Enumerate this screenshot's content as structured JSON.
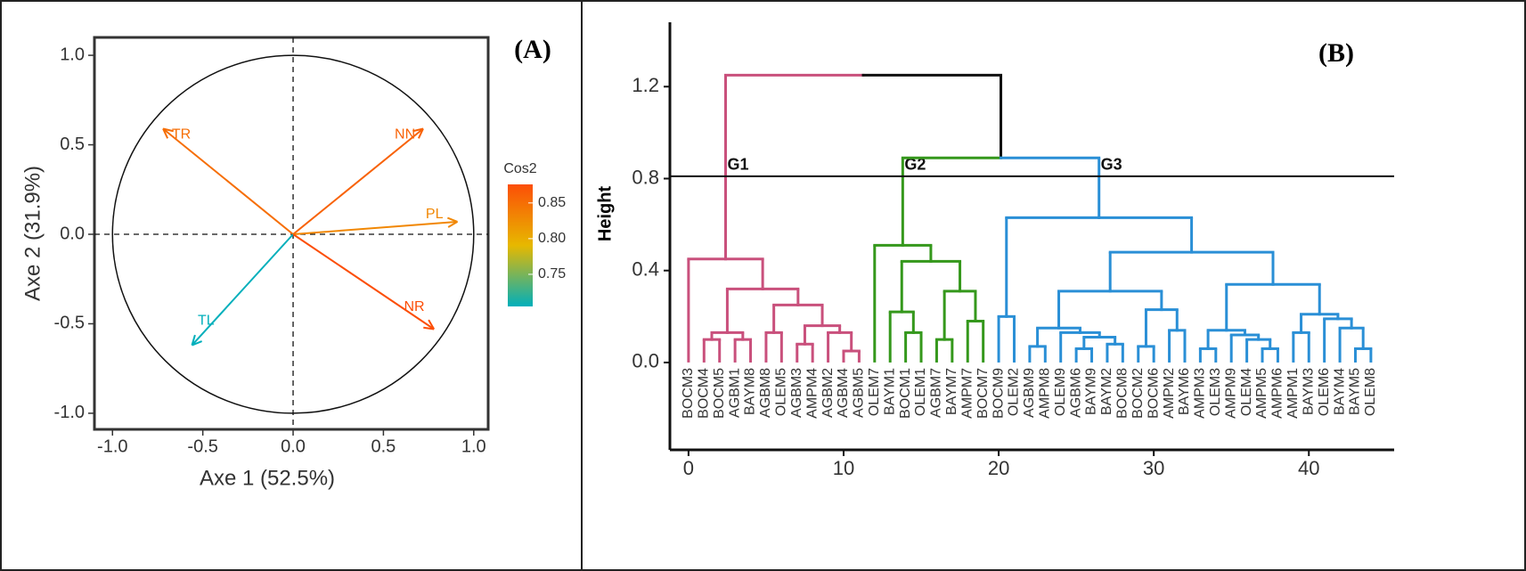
{
  "chart_data": [
    {
      "type": "vector",
      "panel_label": "(A)",
      "x_label": "Axe 1 (52.5%)",
      "y_label": "Axe 2 (31.9%)",
      "xlim": [
        -1.1,
        1.08
      ],
      "ylim": [
        -1.09,
        1.1
      ],
      "xticks": [
        {
          "value": -1,
          "label": "-1.0"
        },
        {
          "value": -0.5,
          "label": "-0.5"
        },
        {
          "value": 0,
          "label": "0.0"
        },
        0.5,
        {
          "value": 1,
          "label": "1.0"
        }
      ],
      "yticks": [
        {
          "value": -1,
          "label": "-1.0"
        },
        {
          "value": -0.5,
          "label": "-0.5"
        },
        {
          "value": 0,
          "label": "0.0"
        },
        0.5,
        {
          "value": 1,
          "label": "1.0"
        }
      ],
      "vectors": [
        {
          "name": "TR",
          "x": -0.72,
          "y": 0.59,
          "cos2": 0.85
        },
        {
          "name": "NN",
          "x": 0.72,
          "y": 0.59,
          "cos2": 0.86
        },
        {
          "name": "PL",
          "x": 0.91,
          "y": 0.07,
          "cos2": 0.83
        },
        {
          "name": "TL",
          "x": -0.56,
          "y": -0.62,
          "cos2": 0.705
        },
        {
          "name": "NR",
          "x": 0.78,
          "y": -0.53,
          "cos2": 0.876
        }
      ],
      "colorbar": {
        "title": "Cos2",
        "colors": [
          "#00AFBB",
          "#E7B800",
          "#FC4E07"
        ],
        "lim": [
          0.705,
          0.876
        ],
        "ticks": [
          0.75,
          {
            "value": 0.8,
            "label": "0.80"
          },
          0.85
        ]
      }
    },
    {
      "type": "dendrogram",
      "panel_label": "(B)",
      "y_label": "Height",
      "xlim": [
        -1.2,
        45.5
      ],
      "ylim": [
        -0.38,
        1.48
      ],
      "xticks": [
        0,
        10,
        20,
        30,
        40
      ],
      "yticks": [
        {
          "value": 0,
          "label": "0.0"
        },
        0.4,
        0.8,
        1.2
      ],
      "cut_height": 0.81,
      "groups": [
        {
          "name": "G1",
          "color": "#c9507c"
        },
        {
          "name": "G2",
          "color": "#35981c"
        },
        {
          "name": "G3",
          "color": "#2a8fd6"
        }
      ],
      "labels": [
        "BOCM3",
        "BOCM4",
        "BOCM5",
        "AGBM1",
        "BAYM8",
        "AGBM8",
        "OLEM5",
        "AGBM3",
        "AMPM4",
        "AGBM2",
        "AGBM4",
        "AGBM5",
        "OLEM7",
        "BAYM1",
        "BOCM1",
        "OLEM1",
        "AGBM7",
        "BAYM7",
        "AMPM7",
        "BOCM7",
        "BOCM9",
        "OLEM2",
        "AGBM9",
        "AMPM8",
        "OLEM9",
        "AGBM6",
        "BAYM9",
        "BAYM2",
        "BOCM8",
        "BOCM2",
        "BOCM6",
        "AMPM2",
        "BAYM6",
        "AMPM3",
        "OLEM3",
        "AMPM9",
        "OLEM4",
        "AMPM5",
        "AMPM6",
        "AMPM1",
        "BAYM3",
        "OLEM6",
        "BAYM4",
        "BAYM5",
        "OLEM8"
      ],
      "tree": {
        "height": 1.25,
        "children": [
          {
            "height": 0.45,
            "children": [
              0,
              {
                "height": 0.32,
                "children": [
                  {
                    "height": 0.13,
                    "children": [
                      {
                        "height": 0.1,
                        "children": [
                          1,
                          2
                        ]
                      },
                      {
                        "height": 0.1,
                        "children": [
                          3,
                          4
                        ]
                      }
                    ]
                  },
                  {
                    "height": 0.25,
                    "children": [
                      {
                        "height": 0.13,
                        "children": [
                          5,
                          6
                        ]
                      },
                      {
                        "height": 0.16,
                        "children": [
                          {
                            "height": 0.08,
                            "children": [
                              7,
                              8
                            ]
                          },
                          {
                            "height": 0.13,
                            "children": [
                              9,
                              {
                                "height": 0.05,
                                "children": [
                                  10,
                                  11
                                ]
                              }
                            ]
                          }
                        ]
                      }
                    ]
                  }
                ]
              }
            ]
          },
          {
            "height": 0.89,
            "children": [
              {
                "height": 0.51,
                "children": [
                  12,
                  {
                    "height": 0.44,
                    "children": [
                      {
                        "height": 0.22,
                        "children": [
                          13,
                          {
                            "height": 0.13,
                            "children": [
                              14,
                              15
                            ]
                          }
                        ]
                      },
                      {
                        "height": 0.31,
                        "children": [
                          {
                            "height": 0.1,
                            "children": [
                              16,
                              17
                            ]
                          },
                          {
                            "height": 0.18,
                            "children": [
                              18,
                              19
                            ]
                          }
                        ]
                      }
                    ]
                  }
                ]
              },
              {
                "height": 0.63,
                "children": [
                  {
                    "height": 0.2,
                    "children": [
                      20,
                      21
                    ]
                  },
                  {
                    "height": 0.48,
                    "children": [
                      {
                        "height": 0.31,
                        "children": [
                          {
                            "height": 0.15,
                            "children": [
                              {
                                "height": 0.07,
                                "children": [
                                  22,
                                  23
                                ]
                              },
                              {
                                "height": 0.13,
                                "children": [
                                  24,
                                  {
                                    "height": 0.11,
                                    "children": [
                                      {
                                        "height": 0.06,
                                        "children": [
                                          25,
                                          26
                                        ]
                                      },
                                      {
                                        "height": 0.08,
                                        "children": [
                                          27,
                                          28
                                        ]
                                      }
                                    ]
                                  }
                                ]
                              }
                            ]
                          },
                          {
                            "height": 0.23,
                            "children": [
                              {
                                "height": 0.07,
                                "children": [
                                  29,
                                  30
                                ]
                              },
                              {
                                "height": 0.14,
                                "children": [
                                  31,
                                  32
                                ]
                              }
                            ]
                          }
                        ]
                      },
                      {
                        "height": 0.34,
                        "children": [
                          {
                            "height": 0.14,
                            "children": [
                              {
                                "height": 0.06,
                                "children": [
                                  33,
                                  34
                                ]
                              },
                              {
                                "height": 0.12,
                                "children": [
                                  35,
                                  {
                                    "height": 0.1,
                                    "children": [
                                      36,
                                      {
                                        "height": 0.06,
                                        "children": [
                                          37,
                                          38
                                        ]
                                      }
                                    ]
                                  }
                                ]
                              }
                            ]
                          },
                          {
                            "height": 0.21,
                            "children": [
                              {
                                "height": 0.13,
                                "children": [
                                  39,
                                  40
                                ]
                              },
                              {
                                "height": 0.19,
                                "children": [
                                  41,
                                  {
                                    "height": 0.15,
                                    "children": [
                                      42,
                                      {
                                        "height": 0.06,
                                        "children": [
                                          43,
                                          44
                                        ]
                                      }
                                    ]
                                  }
                                ]
                              }
                            ]
                          }
                        ]
                      }
                    ]
                  }
                ]
              }
            ]
          }
        ]
      }
    }
  ]
}
